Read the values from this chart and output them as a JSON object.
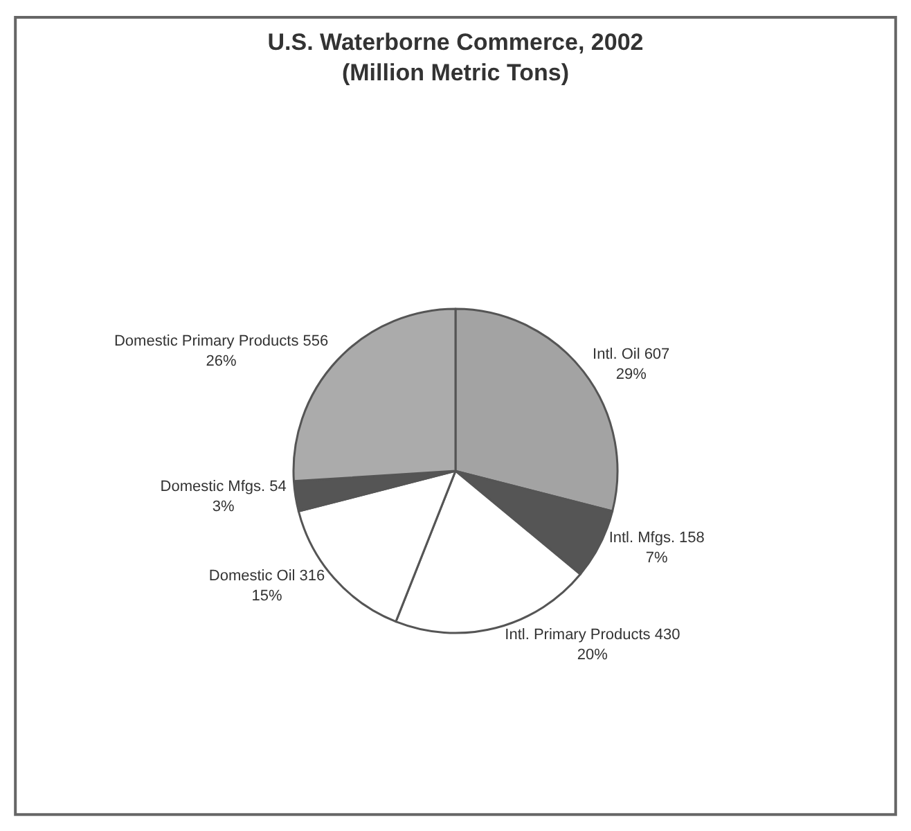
{
  "chart_data": {
    "type": "pie",
    "title": "U.S. Waterborne Commerce, 2002\n(Million Metric Tons)",
    "categories": [
      "Intl. Oil 607",
      "Intl. Mfgs. 158",
      "Intl. Primary Products 430",
      "Domestic Oil 316",
      "Domestic Mfgs. 54",
      "Domestic Primary Products 556"
    ],
    "values": [
      29,
      7,
      20,
      15,
      3,
      26
    ],
    "value_labels": [
      "29%",
      "7%",
      "20%",
      "15%",
      "3%",
      "26%"
    ],
    "colors": [
      "#a3a3a3",
      "#555555",
      "#ffffff",
      "#ffffff",
      "#555555",
      "#ababab"
    ],
    "legend": false
  }
}
